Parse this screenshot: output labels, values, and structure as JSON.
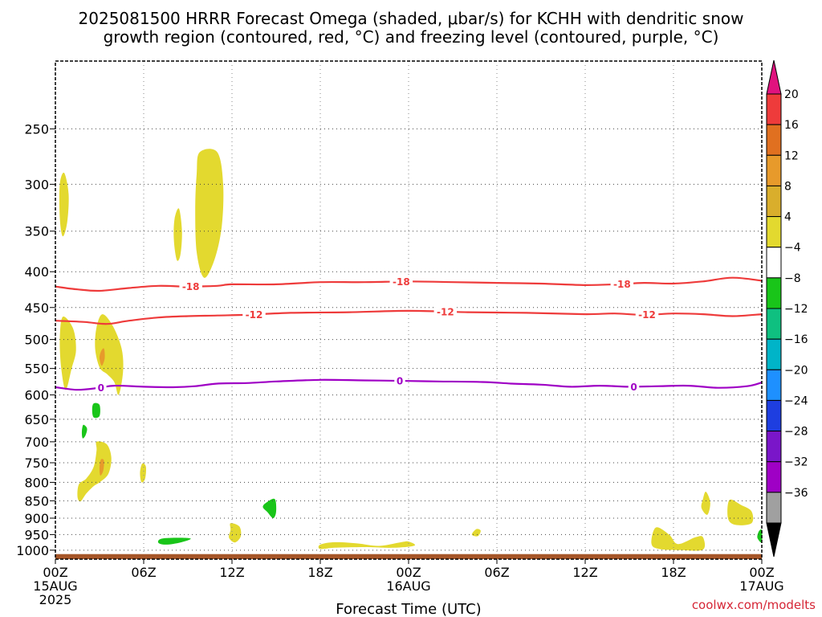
{
  "title_line1": "2025081500 HRRR Forecast Omega (shaded, μbar/s) for KCHH with dendritic snow",
  "title_line2": "growth region (contoured, red, °C) and freezing level (contoured, purple, °C)",
  "credit": "coolwx.com/modelts",
  "chart_data": {
    "type": "heatmap",
    "xlabel": "Forecast Time (UTC)",
    "ylabel": "",
    "x_range_hours": [
      0,
      48
    ],
    "y_range_mb": [
      1030,
      200
    ],
    "y_ticks": [
      250,
      300,
      350,
      400,
      450,
      500,
      550,
      600,
      650,
      700,
      750,
      800,
      850,
      900,
      950,
      1000
    ],
    "x_ticks": [
      {
        "hour": 0,
        "line1": "00Z",
        "line2": "15AUG",
        "line3": "2025"
      },
      {
        "hour": 6,
        "line1": "06Z",
        "line2": "",
        "line3": ""
      },
      {
        "hour": 12,
        "line1": "12Z",
        "line2": "",
        "line3": ""
      },
      {
        "hour": 18,
        "line1": "18Z",
        "line2": "",
        "line3": ""
      },
      {
        "hour": 24,
        "line1": "00Z",
        "line2": "16AUG",
        "line3": ""
      },
      {
        "hour": 30,
        "line1": "06Z",
        "line2": "",
        "line3": ""
      },
      {
        "hour": 36,
        "line1": "12Z",
        "line2": "",
        "line3": ""
      },
      {
        "hour": 42,
        "line1": "18Z",
        "line2": "",
        "line3": ""
      },
      {
        "hour": 48,
        "line1": "00Z",
        "line2": "17AUG",
        "line3": ""
      }
    ],
    "grid": true,
    "contours": [
      {
        "name": "-18",
        "color": "#ee3b3b",
        "label": "-18",
        "label_hours": [
          9.2,
          23.5,
          38.5
        ],
        "points": [
          [
            0,
            420
          ],
          [
            1.5,
            424
          ],
          [
            3,
            426
          ],
          [
            5,
            422
          ],
          [
            7,
            419
          ],
          [
            9,
            420
          ],
          [
            11,
            419
          ],
          [
            12,
            417
          ],
          [
            15,
            417
          ],
          [
            18,
            414
          ],
          [
            21,
            414
          ],
          [
            24,
            413
          ],
          [
            27,
            414
          ],
          [
            30,
            415
          ],
          [
            33,
            416
          ],
          [
            36,
            418
          ],
          [
            38,
            417
          ],
          [
            40,
            415
          ],
          [
            42,
            416
          ],
          [
            44,
            413
          ],
          [
            46,
            408
          ],
          [
            48,
            412
          ]
        ]
      },
      {
        "name": "-12",
        "color": "#ee3b3b",
        "label": "-12",
        "label_hours": [
          13.5,
          26.5,
          40.2
        ],
        "points": [
          [
            0,
            470
          ],
          [
            2,
            472
          ],
          [
            3.5,
            475
          ],
          [
            5,
            470
          ],
          [
            7,
            465
          ],
          [
            9,
            463
          ],
          [
            11,
            462
          ],
          [
            13,
            461
          ],
          [
            16,
            458
          ],
          [
            20,
            457
          ],
          [
            24,
            455
          ],
          [
            28,
            457
          ],
          [
            32,
            458
          ],
          [
            36,
            460
          ],
          [
            38,
            459
          ],
          [
            40,
            461
          ],
          [
            42,
            459
          ],
          [
            44,
            460
          ],
          [
            46,
            463
          ],
          [
            48,
            460
          ]
        ]
      },
      {
        "name": "0",
        "color": "#9f00c5",
        "label": "0",
        "label_hours": [
          3.1,
          23.4,
          39.3
        ],
        "points": [
          [
            0,
            585
          ],
          [
            1.5,
            590
          ],
          [
            3,
            586
          ],
          [
            4,
            582
          ],
          [
            6,
            584
          ],
          [
            8,
            585
          ],
          [
            9.5,
            583
          ],
          [
            11,
            578
          ],
          [
            13,
            577
          ],
          [
            15,
            574
          ],
          [
            18,
            571
          ],
          [
            21,
            572
          ],
          [
            24,
            573
          ],
          [
            26,
            574
          ],
          [
            29,
            575
          ],
          [
            31,
            578
          ],
          [
            33,
            580
          ],
          [
            35,
            584
          ],
          [
            37,
            582
          ],
          [
            39,
            584
          ],
          [
            41,
            583
          ],
          [
            43,
            582
          ],
          [
            45,
            586
          ],
          [
            47,
            583
          ],
          [
            48,
            576
          ]
        ]
      }
    ],
    "omega_shading": [
      {
        "color": "#e3d92f",
        "points": [
          [
            0.6,
            289
          ],
          [
            0.9,
            310
          ],
          [
            0.8,
            340
          ],
          [
            0.5,
            356
          ],
          [
            0.3,
            335
          ],
          [
            0.3,
            300
          ]
        ]
      },
      {
        "color": "#e3d92f",
        "points": [
          [
            8.1,
            336
          ],
          [
            8.4,
            325
          ],
          [
            8.6,
            350
          ],
          [
            8.5,
            378
          ],
          [
            8.25,
            385
          ],
          [
            8.05,
            360
          ]
        ]
      },
      {
        "color": "#e3d92f",
        "points": [
          [
            9.8,
            270
          ],
          [
            11.0,
            270
          ],
          [
            11.4,
            300
          ],
          [
            11.3,
            345
          ],
          [
            10.8,
            385
          ],
          [
            10.1,
            408
          ],
          [
            9.6,
            375
          ],
          [
            9.5,
            325
          ],
          [
            9.6,
            290
          ]
        ]
      },
      {
        "color": "#e3d92f",
        "points": [
          [
            0.5,
            464
          ],
          [
            1.2,
            482
          ],
          [
            1.4,
            518
          ],
          [
            1.1,
            550
          ],
          [
            0.7,
            590
          ],
          [
            0.4,
            550
          ],
          [
            0.3,
            500
          ]
        ]
      },
      {
        "color": "#e3d92f",
        "points": [
          [
            3.2,
            460
          ],
          [
            3.9,
            478
          ],
          [
            4.5,
            515
          ],
          [
            4.6,
            555
          ],
          [
            4.3,
            600
          ],
          [
            4.0,
            575
          ],
          [
            3.5,
            560
          ],
          [
            3.0,
            548
          ],
          [
            2.7,
            515
          ],
          [
            2.8,
            480
          ]
        ]
      },
      {
        "color": "#e79a2b",
        "points": [
          [
            3.1,
            520
          ],
          [
            3.3,
            515
          ],
          [
            3.35,
            532
          ],
          [
            3.15,
            545
          ],
          [
            3.0,
            532
          ]
        ]
      },
      {
        "color": "#19c519",
        "points": [
          [
            2.6,
            617
          ],
          [
            3.0,
            620
          ],
          [
            3.0,
            643
          ],
          [
            2.6,
            646
          ],
          [
            2.5,
            630
          ]
        ]
      },
      {
        "color": "#19c519",
        "points": [
          [
            1.9,
            662
          ],
          [
            2.15,
            670
          ],
          [
            2.05,
            685
          ],
          [
            1.85,
            692
          ],
          [
            1.8,
            676
          ]
        ]
      },
      {
        "color": "#e3d92f",
        "points": [
          [
            2.8,
            700
          ],
          [
            3.5,
            706
          ],
          [
            3.8,
            738
          ],
          [
            3.6,
            778
          ],
          [
            3.0,
            800
          ],
          [
            2.6,
            810
          ],
          [
            2.1,
            830
          ],
          [
            1.7,
            852
          ],
          [
            1.5,
            838
          ],
          [
            1.6,
            805
          ],
          [
            2.1,
            790
          ],
          [
            2.6,
            760
          ],
          [
            2.8,
            720
          ]
        ]
      },
      {
        "color": "#e79a2b",
        "points": [
          [
            3.1,
            742
          ],
          [
            3.3,
            745
          ],
          [
            3.25,
            770
          ],
          [
            3.05,
            782
          ],
          [
            3.0,
            760
          ]
        ]
      },
      {
        "color": "#e3d92f",
        "points": [
          [
            5.9,
            752
          ],
          [
            6.15,
            760
          ],
          [
            6.1,
            790
          ],
          [
            5.85,
            800
          ],
          [
            5.75,
            775
          ]
        ]
      },
      {
        "color": "#19c519",
        "points": [
          [
            14.3,
            856
          ],
          [
            14.9,
            845
          ],
          [
            15.0,
            880
          ],
          [
            14.8,
            900
          ],
          [
            14.4,
            882
          ],
          [
            14.1,
            868
          ]
        ]
      },
      {
        "color": "#e3d92f",
        "points": [
          [
            11.9,
            915
          ],
          [
            12.5,
            925
          ],
          [
            12.6,
            955
          ],
          [
            12.2,
            975
          ],
          [
            11.8,
            960
          ],
          [
            11.9,
            935
          ]
        ]
      },
      {
        "color": "#19c519",
        "points": [
          [
            7.2,
            963
          ],
          [
            8.4,
            960
          ],
          [
            9.2,
            963
          ],
          [
            8.5,
            975
          ],
          [
            7.5,
            982
          ],
          [
            7.0,
            976
          ]
        ]
      },
      {
        "color": "#e3d92f",
        "points": [
          [
            18.0,
            982
          ],
          [
            19,
            974
          ],
          [
            20.5,
            978
          ],
          [
            22,
            986
          ],
          [
            23.5,
            974
          ],
          [
            24,
            972
          ],
          [
            24.4,
            985
          ],
          [
            23,
            992
          ],
          [
            21,
            990
          ],
          [
            19,
            992
          ],
          [
            18,
            996
          ]
        ]
      },
      {
        "color": "#e3d92f",
        "points": [
          [
            28.6,
            933
          ],
          [
            28.9,
            938
          ],
          [
            28.7,
            955
          ],
          [
            28.3,
            950
          ]
        ]
      },
      {
        "color": "#e3d92f",
        "points": [
          [
            40.8,
            928
          ],
          [
            41.7,
            950
          ],
          [
            42.3,
            980
          ],
          [
            43.5,
            958
          ],
          [
            44,
            958
          ],
          [
            44,
            998
          ],
          [
            42.5,
            1000
          ],
          [
            41,
            996
          ],
          [
            40.5,
            978
          ]
        ]
      },
      {
        "color": "#e3d92f",
        "points": [
          [
            44.2,
            825
          ],
          [
            44.5,
            855
          ],
          [
            44.3,
            890
          ],
          [
            43.9,
            870
          ],
          [
            44.0,
            845
          ]
        ]
      },
      {
        "color": "#e3d92f",
        "points": [
          [
            45.8,
            848
          ],
          [
            46.6,
            862
          ],
          [
            47.3,
            880
          ],
          [
            47.3,
            915
          ],
          [
            46.2,
            920
          ],
          [
            45.7,
            900
          ]
        ]
      },
      {
        "color": "#19c519",
        "points": [
          [
            47.8,
            940
          ],
          [
            48,
            936
          ],
          [
            48,
            975
          ],
          [
            47.7,
            960
          ]
        ]
      }
    ],
    "ground_band_mb": [
      1013,
      1030
    ],
    "ground_color": "#a65628"
  },
  "colorbar": {
    "labels": [
      "20",
      "16",
      "12",
      "8",
      "4",
      "−4",
      "−8",
      "−12",
      "−16",
      "−20",
      "−24",
      "−28",
      "−32",
      "−36"
    ],
    "colors": [
      "#ee3b3b",
      "#e07020",
      "#e79a2b",
      "#d9ae2c",
      "#e3d92f",
      "#ffffff",
      "#19c519",
      "#0fc080",
      "#00b4c8",
      "#1e90ff",
      "#1e3ee0",
      "#7a16c9",
      "#9f00c5",
      "#a0a0a0"
    ],
    "top_color": "#e0127e",
    "bottom_color": "#000000"
  }
}
